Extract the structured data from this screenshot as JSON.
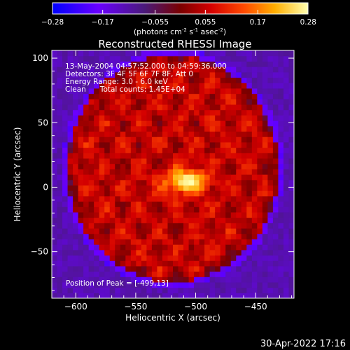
{
  "chart_data": {
    "type": "heatmap",
    "title": "Reconstructed RHESSI Image",
    "xlabel": "Heliocentric X (arcsec)",
    "ylabel": "Heliocentric Y (arcsec)",
    "xlim": [
      -620,
      -418
    ],
    "ylim": [
      -86,
      106
    ],
    "xticks": [
      -600,
      -550,
      -500,
      -450
    ],
    "yticks": [
      -50,
      0,
      50,
      100
    ],
    "colorbar": {
      "ticks": [
        "-0.28",
        "-0.17",
        "-0.055",
        "0.055",
        "0.17",
        "0.28"
      ],
      "range": [
        -0.28,
        0.28
      ],
      "unit_parts": [
        "(photons cm",
        "-2",
        " s",
        "-1",
        " asec",
        "-2",
        ")"
      ]
    },
    "annotations": [
      "13-May-2004 04:57:52.000 to 04:59:36.000",
      "Detectors: 3F 4F 5F 6F 7F 8F, Att 0",
      "Energy Range: 3.0 - 6.0 keV",
      "Clean      Total counts: 1.45E+04"
    ],
    "peak_label": "Position of Peak = [-499,13]",
    "peak": {
      "x": -499,
      "y": 13,
      "value": 0.28
    },
    "source_center": {
      "x": -508,
      "y": 5
    },
    "disk_radius_arcsec": 88,
    "background_level": -0.12,
    "diffuse_level": 0.055,
    "colors": {
      "background": "#000000",
      "text": "#ffffff"
    }
  },
  "footer": {
    "timestamp": "30-Apr-2022 17:16"
  }
}
